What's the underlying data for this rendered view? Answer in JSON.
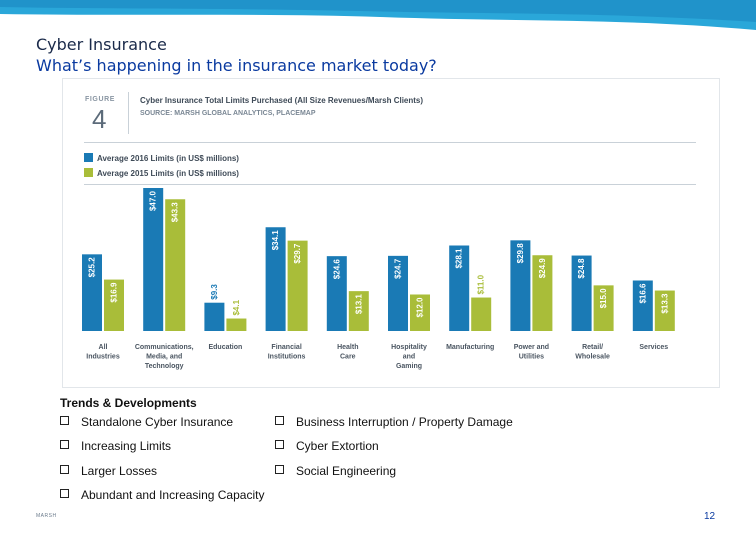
{
  "slide": {
    "title": "Cyber Insurance",
    "subtitle": "What’s happening in the insurance market today?",
    "page_number": "12",
    "footer_logo": "MARSH"
  },
  "figure": {
    "label": "FIGURE",
    "number": "4",
    "title": "Cyber Insurance Total Limits Purchased (All Size Revenues/Marsh Clients)",
    "source": "SOURCE: MARSH GLOBAL ANALYTICS, PLACEMAP"
  },
  "colors": {
    "series_2016": "#1a7ab5",
    "series_2015": "#a9bd39",
    "label_text": "#ffffff",
    "category_text": "#4a5561",
    "band": "#2aa7d9"
  },
  "chart_data": {
    "type": "bar",
    "title": "Cyber Insurance Total Limits Purchased (All Size Revenues/Marsh Clients)",
    "categories": [
      [
        "All",
        "Industries"
      ],
      [
        "Communications,",
        "Media, and",
        "Technology"
      ],
      [
        "Education"
      ],
      [
        "Financial",
        "Institutions"
      ],
      [
        "Health",
        "Care"
      ],
      [
        "Hospitality",
        "and",
        "Gaming"
      ],
      [
        "Manufacturing"
      ],
      [
        "Power and",
        "Utilities"
      ],
      [
        "Retail/",
        "Wholesale"
      ],
      [
        "Services"
      ]
    ],
    "series": [
      {
        "name": "Average 2016 Limits (in US$ millions)",
        "values": [
          25.2,
          47.0,
          9.3,
          34.1,
          24.6,
          24.7,
          28.1,
          29.8,
          24.8,
          16.6
        ],
        "labels": [
          "$25.2",
          "$47.0",
          "$9.3",
          "$34.1",
          "$24.6",
          "$24.7",
          "$28.1",
          "$29.8",
          "$24.8",
          "$16.6"
        ]
      },
      {
        "name": "Average 2015 Limits (in US$ millions)",
        "values": [
          16.9,
          43.3,
          4.1,
          29.7,
          13.1,
          12.0,
          11.0,
          24.9,
          15.0,
          13.3
        ],
        "labels": [
          "$16.9",
          "$43.3",
          "$4.1",
          "$29.7",
          "$13.1",
          "$12.0",
          "$11.0",
          "$24.9",
          "$15.0",
          "$13.3"
        ]
      }
    ],
    "xlabel": "",
    "ylabel": "",
    "ylim": [
      0,
      50
    ],
    "grid": false,
    "legend": "top-left"
  },
  "trends": {
    "title": "Trends & Developments",
    "items": [
      "Standalone Cyber Insurance",
      "Business Interruption / Property Damage",
      "Increasing Limits",
      "Cyber Extortion",
      "Larger Losses",
      "Social Engineering",
      "Abundant and Increasing Capacity"
    ]
  }
}
